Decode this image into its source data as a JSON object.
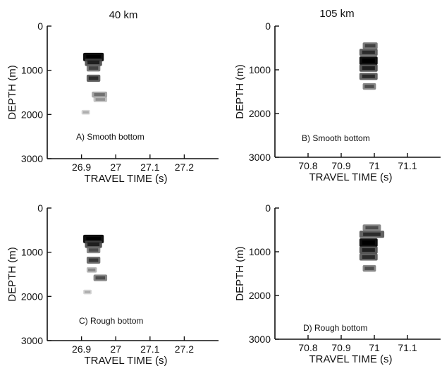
{
  "chart_data": [
    {
      "type": "heatmap",
      "title": "40 km",
      "annotation": "A) Smooth bottom",
      "xlabel": "TRAVEL TIME (s)",
      "ylabel": "DEPTH (m)",
      "xlim": [
        26.8,
        27.3
      ],
      "ylim": [
        0,
        3000
      ],
      "y_inverted": true,
      "xticks": [
        26.9,
        27,
        27.1,
        27.2
      ],
      "xtick_labels": [
        "26.9",
        "27",
        "27.1",
        "27.2"
      ],
      "yticks": [
        0,
        1000,
        2000,
        3000
      ],
      "ytick_labels": [
        "0",
        "1000",
        "2000",
        "3000"
      ],
      "arrivals": [
        {
          "t_start": 26.905,
          "t_end": 26.965,
          "depth": 700,
          "intensity": 1.0
        },
        {
          "t_start": 26.91,
          "t_end": 26.96,
          "depth": 820,
          "intensity": 0.75
        },
        {
          "t_start": 26.915,
          "t_end": 26.955,
          "depth": 950,
          "intensity": 0.6
        },
        {
          "t_start": 26.915,
          "t_end": 26.955,
          "depth": 1180,
          "intensity": 0.7
        },
        {
          "t_start": 26.93,
          "t_end": 26.975,
          "depth": 1550,
          "intensity": 0.4
        },
        {
          "t_start": 26.935,
          "t_end": 26.975,
          "depth": 1660,
          "intensity": 0.25
        },
        {
          "t_start": 26.9,
          "t_end": 26.925,
          "depth": 1950,
          "intensity": 0.12
        }
      ]
    },
    {
      "type": "heatmap",
      "title": "105 km",
      "annotation": "B) Smooth bottom",
      "xlabel": "TRAVEL TIME (s)",
      "ylabel": "DEPTH (m)",
      "xlim": [
        70.7,
        71.2
      ],
      "ylim": [
        0,
        3000
      ],
      "y_inverted": true,
      "xticks": [
        70.8,
        70.9,
        71,
        71.1
      ],
      "xtick_labels": [
        "70.8",
        "70.9",
        "71",
        "71.1"
      ],
      "yticks": [
        0,
        1000,
        2000,
        3000
      ],
      "ytick_labels": [
        "0",
        "1000",
        "2000",
        "3000"
      ],
      "arrivals": [
        {
          "t_start": 70.965,
          "t_end": 71.01,
          "depth": 450,
          "intensity": 0.6
        },
        {
          "t_start": 70.955,
          "t_end": 71.01,
          "depth": 600,
          "intensity": 0.7
        },
        {
          "t_start": 70.955,
          "t_end": 71.01,
          "depth": 790,
          "intensity": 1.0
        },
        {
          "t_start": 70.955,
          "t_end": 71.01,
          "depth": 960,
          "intensity": 0.75
        },
        {
          "t_start": 70.955,
          "t_end": 71.01,
          "depth": 1150,
          "intensity": 0.7
        },
        {
          "t_start": 70.965,
          "t_end": 71.005,
          "depth": 1380,
          "intensity": 0.55
        }
      ]
    },
    {
      "type": "heatmap",
      "title": "",
      "annotation": "C) Rough bottom",
      "xlabel": "TRAVEL TIME (s)",
      "ylabel": "DEPTH (m)",
      "xlim": [
        26.8,
        27.3
      ],
      "ylim": [
        0,
        3000
      ],
      "y_inverted": true,
      "xticks": [
        26.9,
        27,
        27.1,
        27.2
      ],
      "xtick_labels": [
        "26.9",
        "27",
        "27.1",
        "27.2"
      ],
      "yticks": [
        0,
        1000,
        2000,
        3000
      ],
      "ytick_labels": [
        "0",
        "1000",
        "2000",
        "3000"
      ],
      "arrivals": [
        {
          "t_start": 26.905,
          "t_end": 26.965,
          "depth": 700,
          "intensity": 1.0
        },
        {
          "t_start": 26.91,
          "t_end": 26.96,
          "depth": 820,
          "intensity": 0.75
        },
        {
          "t_start": 26.915,
          "t_end": 26.955,
          "depth": 950,
          "intensity": 0.55
        },
        {
          "t_start": 26.915,
          "t_end": 26.955,
          "depth": 1180,
          "intensity": 0.65
        },
        {
          "t_start": 26.915,
          "t_end": 26.945,
          "depth": 1400,
          "intensity": 0.3
        },
        {
          "t_start": 26.935,
          "t_end": 26.975,
          "depth": 1580,
          "intensity": 0.55
        },
        {
          "t_start": 26.905,
          "t_end": 26.93,
          "depth": 1900,
          "intensity": 0.12
        }
      ]
    },
    {
      "type": "heatmap",
      "title": "",
      "annotation": "D) Rough bottom",
      "xlabel": "TRAVEL TIME (s)",
      "ylabel": "DEPTH (m)",
      "xlim": [
        70.7,
        71.2
      ],
      "ylim": [
        0,
        3000
      ],
      "y_inverted": true,
      "xticks": [
        70.8,
        70.9,
        71,
        71.1
      ],
      "xtick_labels": [
        "70.8",
        "70.9",
        "71",
        "71.1"
      ],
      "yticks": [
        0,
        1000,
        2000,
        3000
      ],
      "ytick_labels": [
        "0",
        "1000",
        "2000",
        "3000"
      ],
      "arrivals": [
        {
          "t_start": 70.965,
          "t_end": 71.02,
          "depth": 450,
          "intensity": 0.55
        },
        {
          "t_start": 70.955,
          "t_end": 71.03,
          "depth": 600,
          "intensity": 0.7
        },
        {
          "t_start": 70.955,
          "t_end": 71.01,
          "depth": 790,
          "intensity": 1.0
        },
        {
          "t_start": 70.955,
          "t_end": 71.01,
          "depth": 960,
          "intensity": 0.75
        },
        {
          "t_start": 70.955,
          "t_end": 71.01,
          "depth": 1120,
          "intensity": 0.7
        },
        {
          "t_start": 70.965,
          "t_end": 71.005,
          "depth": 1380,
          "intensity": 0.55
        }
      ]
    }
  ]
}
